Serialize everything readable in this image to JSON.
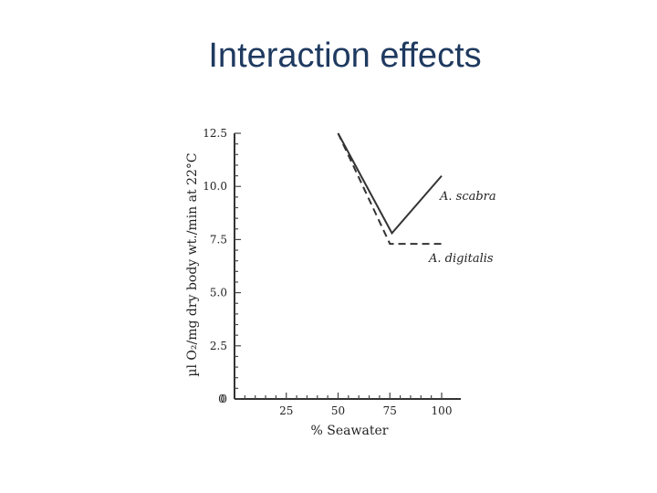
{
  "slide": {
    "title": "Interaction effects"
  },
  "chart_data": {
    "type": "line",
    "xlabel": "% Seawater",
    "ylabel": "µl O₂/mg dry body wt./min at 22°C",
    "xlim": [
      0,
      110
    ],
    "ylim": [
      0,
      12.5
    ],
    "xticks": [
      25,
      50,
      75,
      100
    ],
    "xtick_labels": [
      "25",
      "50",
      "75",
      "100"
    ],
    "yticks": [
      0,
      2.5,
      5.0,
      7.5,
      10.0,
      12.5
    ],
    "ytick_labels": [
      "0",
      "2.5",
      "5.0",
      "7.5",
      "10.0",
      "12.5"
    ],
    "grid": false,
    "series": [
      {
        "name": "A. scabra",
        "style": "solid",
        "x": [
          50,
          76,
          100
        ],
        "y": [
          12.5,
          7.8,
          10.5
        ]
      },
      {
        "name": "A. digitalis",
        "style": "dashed",
        "x": [
          50,
          75,
          100
        ],
        "y": [
          12.5,
          7.3,
          7.3
        ]
      }
    ]
  }
}
